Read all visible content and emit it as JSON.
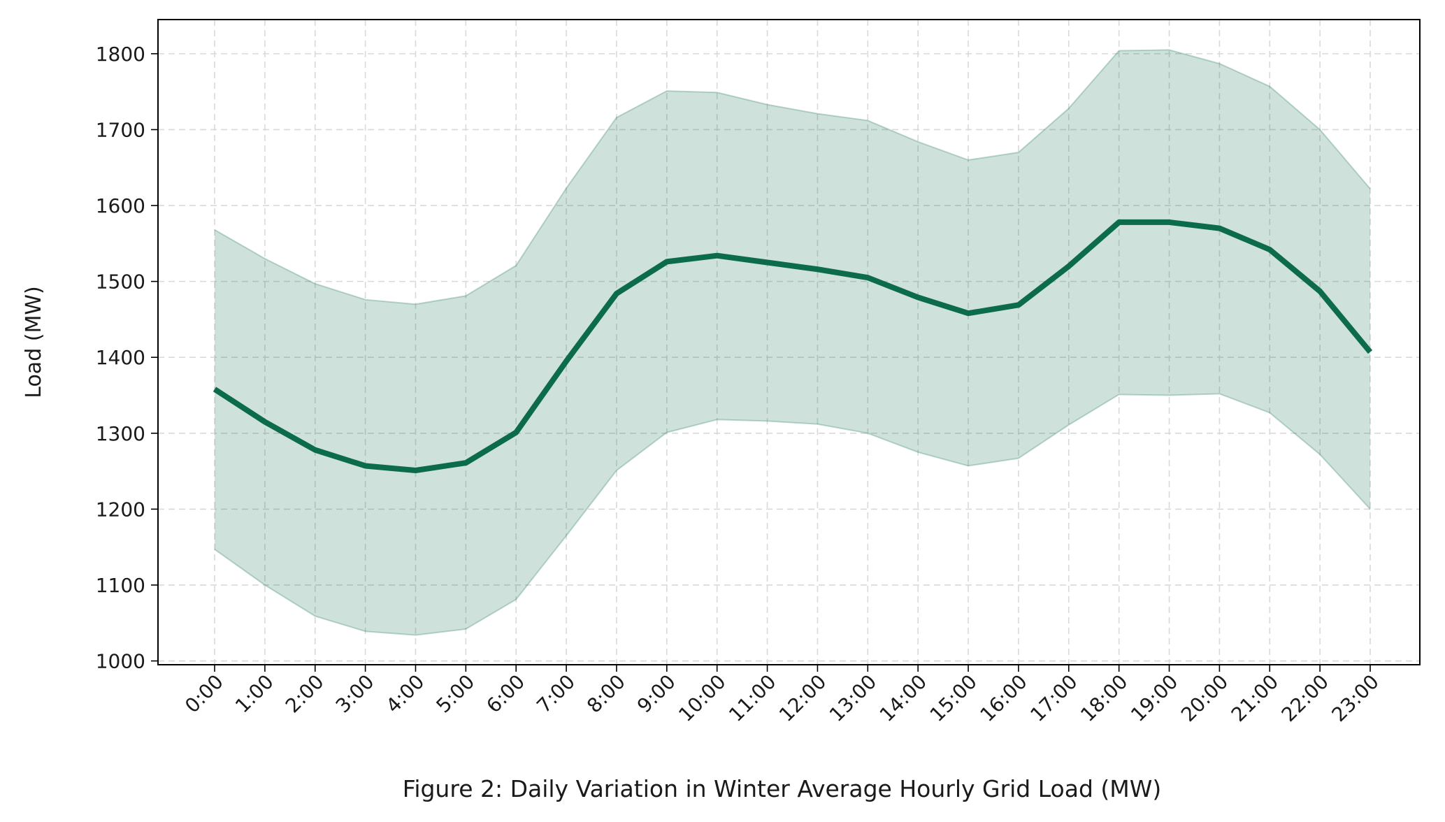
{
  "chart_data": {
    "type": "line",
    "title": "",
    "caption": "Figure 2: Daily Variation in Winter Average Hourly Grid Load (MW)",
    "xlabel": "",
    "ylabel": "Load (MW)",
    "categories": [
      "0:00",
      "1:00",
      "2:00",
      "3:00",
      "4:00",
      "5:00",
      "6:00",
      "7:00",
      "8:00",
      "9:00",
      "10:00",
      "11:00",
      "12:00",
      "13:00",
      "14:00",
      "15:00",
      "16:00",
      "17:00",
      "18:00",
      "19:00",
      "20:00",
      "21:00",
      "22:00",
      "23:00"
    ],
    "ylim": [
      995,
      1845
    ],
    "yticks": [
      1000,
      1100,
      1200,
      1300,
      1400,
      1500,
      1600,
      1700,
      1800
    ],
    "grid": true,
    "legend": "none",
    "series": [
      {
        "values": [
          1358,
          1315,
          1278,
          1257,
          1251,
          1261,
          1301,
          1395,
          1484,
          1526,
          1534,
          1525,
          1516,
          1505,
          1479,
          1458,
          1469,
          1520,
          1578,
          1578,
          1570,
          1542,
          1487,
          1407
        ],
        "color": "#0b6b4b"
      }
    ],
    "band": {
      "lower": [
        1147,
        1100,
        1059,
        1039,
        1034,
        1042,
        1081,
        1165,
        1251,
        1301,
        1318,
        1316,
        1312,
        1300,
        1275,
        1257,
        1267,
        1311,
        1351,
        1350,
        1352,
        1327,
        1272,
        1200
      ],
      "upper": [
        1568,
        1530,
        1497,
        1476,
        1470,
        1481,
        1521,
        1623,
        1716,
        1751,
        1749,
        1733,
        1721,
        1712,
        1684,
        1660,
        1670,
        1728,
        1804,
        1805,
        1787,
        1757,
        1700,
        1622
      ],
      "color": "#0b6b4b",
      "opacity": 0.2
    }
  }
}
